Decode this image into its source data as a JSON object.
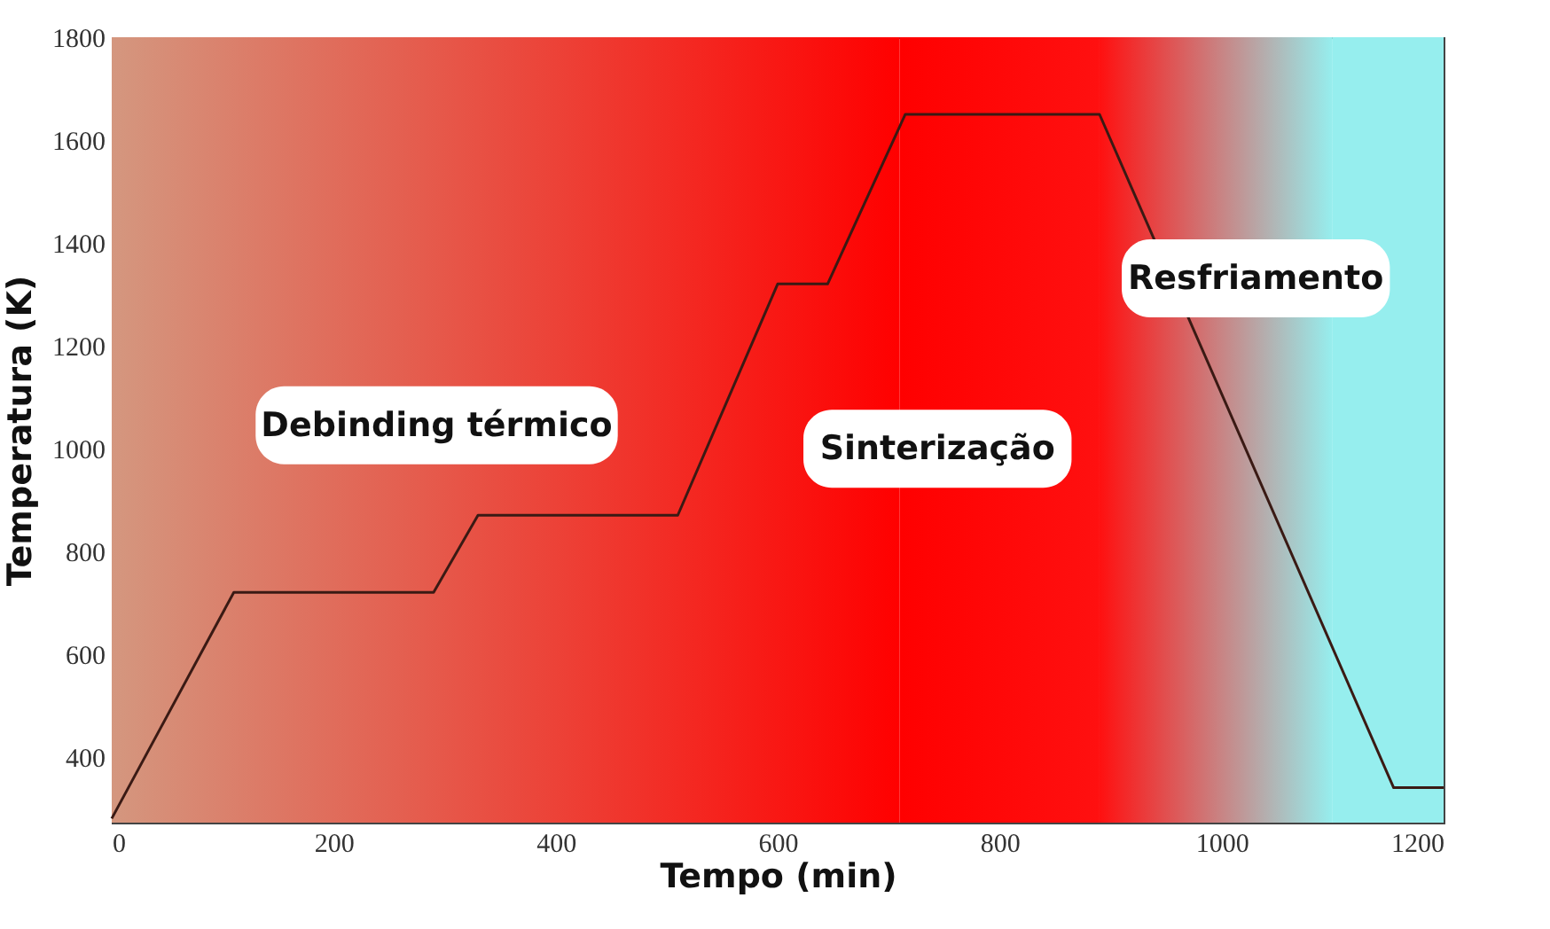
{
  "chart_data": {
    "type": "line",
    "xlabel": "Tempo (min)",
    "ylabel": "Temperatura (K)",
    "x": [
      0,
      110,
      290,
      330,
      510,
      600,
      645,
      715,
      890,
      1155,
      1200
    ],
    "series": [
      {
        "color": "#3a1a14",
        "values": [
          280,
          720,
          720,
          870,
          870,
          1320,
          1320,
          1650,
          1650,
          340,
          340
        ]
      }
    ],
    "xlim": [
      0,
      1200
    ],
    "xticks": [
      0,
      200,
      400,
      600,
      800,
      1000,
      1200
    ],
    "ylim": [
      272,
      1800
    ],
    "yticks": [
      400,
      600,
      800,
      1000,
      1200,
      1400,
      1600,
      1800
    ],
    "grid": false,
    "marker": "none",
    "line_style": "solid",
    "bands": [
      {
        "axis": "x",
        "from": 0,
        "to": 710,
        "color": "#d4977f"
      },
      {
        "axis": "x",
        "from": 710,
        "to": 890,
        "color": "#ff0000"
      },
      {
        "axis": "x",
        "from": 890,
        "to": 1100,
        "color": "#ff1010"
      },
      {
        "axis": "x",
        "from": 1100,
        "to": 1200,
        "color": "#96eeee"
      }
    ],
    "annotations": [
      "Debinding térmico",
      "Sinterização",
      "Resfriamento"
    ]
  }
}
